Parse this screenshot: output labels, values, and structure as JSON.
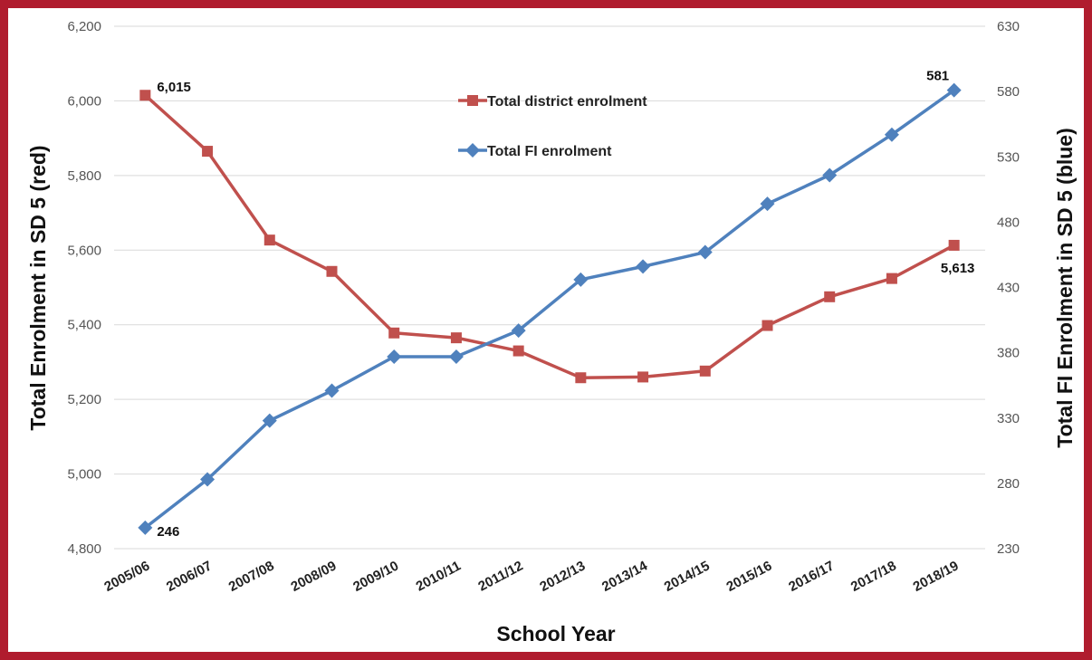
{
  "chart_data": {
    "type": "line",
    "xlabel": "School Year",
    "ylabel_left": "Total Enrolment in SD 5 (red)",
    "ylabel_right": "Total FI Enrolment in SD 5 (blue)",
    "categories": [
      "2005/06",
      "2006/07",
      "2007/08",
      "2008/09",
      "2009/10",
      "2010/11",
      "2011/12",
      "2012/13",
      "2013/14",
      "2014/15",
      "2015/16",
      "2016/17",
      "2017/18",
      "2018/19"
    ],
    "y_left": {
      "min": 4800,
      "max": 6200,
      "step": 200,
      "tick_labels": [
        "4,800",
        "5,000",
        "5,200",
        "5,400",
        "5,600",
        "5,800",
        "6,000",
        "6,200"
      ]
    },
    "y_right": {
      "min": 230,
      "max": 630,
      "step": 50,
      "tick_labels": [
        "230",
        "280",
        "330",
        "380",
        "430",
        "480",
        "530",
        "580",
        "630"
      ]
    },
    "grid": true,
    "legend_position": "top-center",
    "series": [
      {
        "name": "Total district enrolment",
        "axis": "left",
        "color": "#c0504d",
        "marker": "square",
        "values": [
          6015,
          5865,
          5627,
          5543,
          5378,
          5365,
          5330,
          5258,
          5260,
          5276,
          5398,
          5475,
          5524,
          5613
        ]
      },
      {
        "name": "Total FI enrolment",
        "axis": "right",
        "color": "#4f81bd",
        "marker": "diamond",
        "values": [
          246,
          283,
          328,
          351,
          377,
          377,
          397,
          436,
          446,
          457,
          494,
          516,
          547,
          581
        ]
      }
    ],
    "annotations": [
      {
        "series": 0,
        "index": 0,
        "text": "6,015",
        "position": "right"
      },
      {
        "series": 0,
        "index": 13,
        "text": "5,613",
        "position": "below"
      },
      {
        "series": 1,
        "index": 0,
        "text": "246",
        "position": "right"
      },
      {
        "series": 1,
        "index": 13,
        "text": "581",
        "position": "above"
      }
    ]
  },
  "colors": {
    "frame_border": "#b01c2e",
    "grid": "#d9d9d9"
  }
}
